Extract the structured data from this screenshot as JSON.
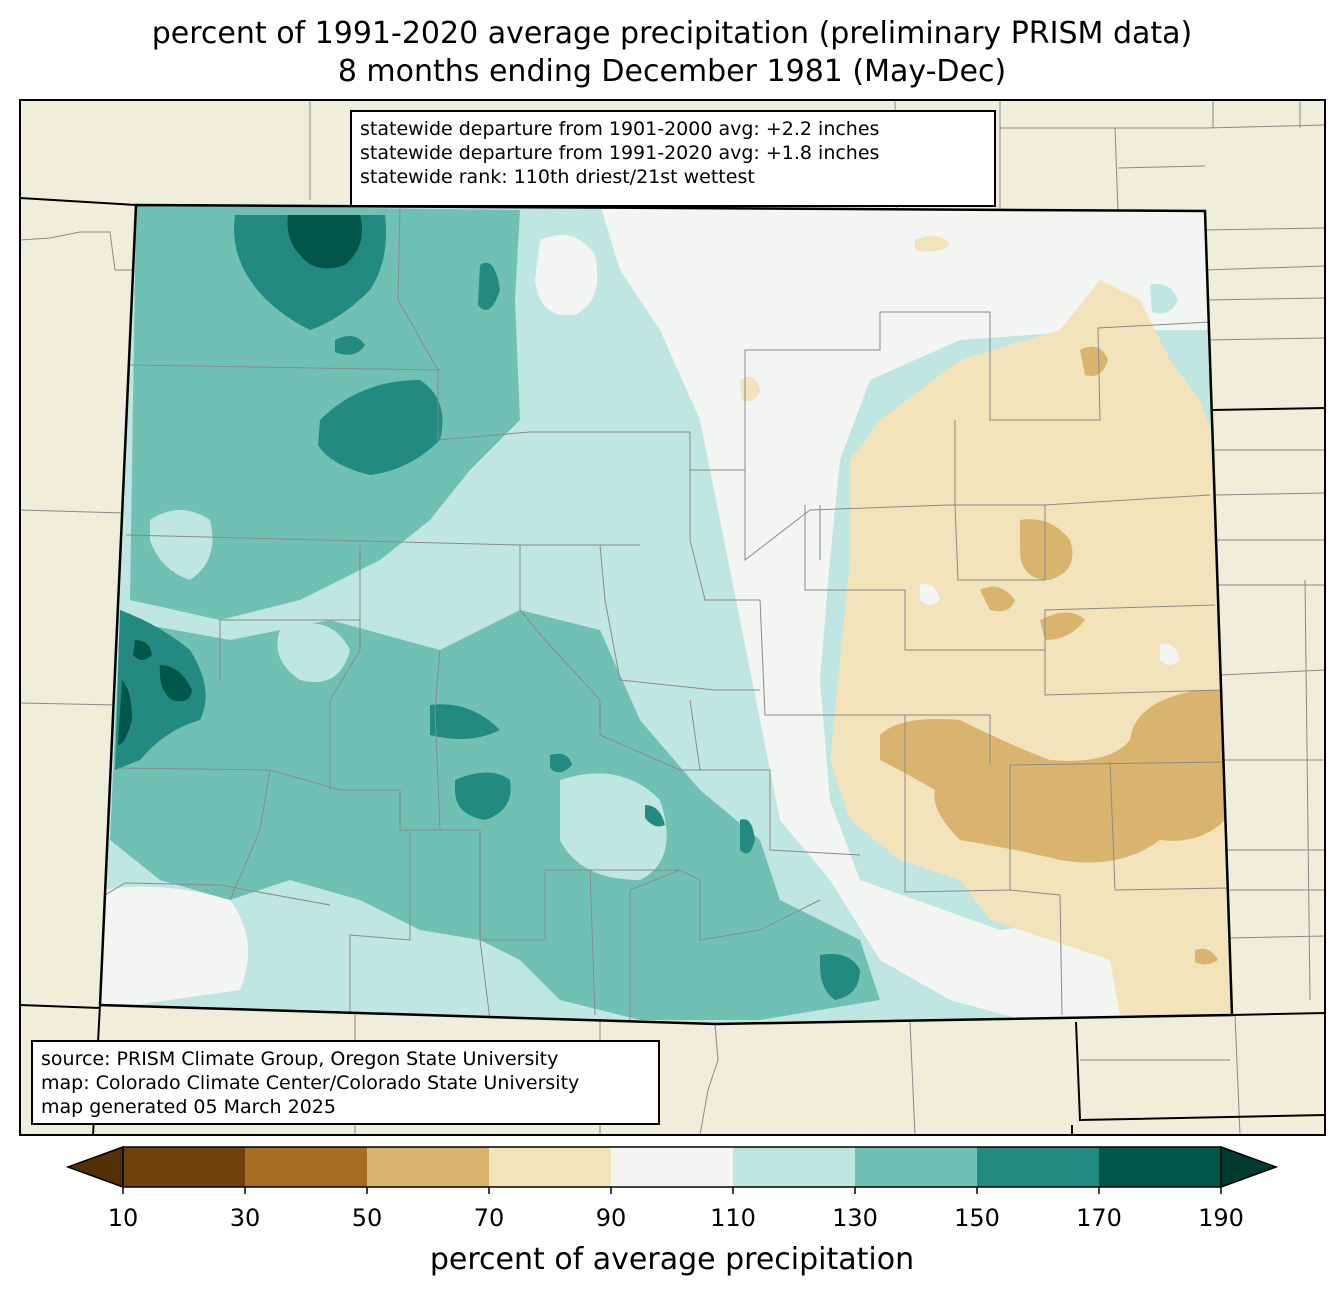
{
  "title": {
    "line1": "percent of 1991-2020 average precipitation (preliminary PRISM data)",
    "line2": "8 months ending December 1981 (May-Dec)"
  },
  "stats": {
    "line1": "statewide departure from 1901-2000 avg: +2.2 inches",
    "line2": "statewide departure from 1991-2020 avg: +1.8 inches",
    "line3": "statewide rank: 110th driest/21st wettest"
  },
  "source": {
    "line1": "source: PRISM Climate Group, Oregon State University",
    "line2": "map: Colorado Climate Center/Colorado State University",
    "line3": "map generated 05 March 2025"
  },
  "colorbar": {
    "label": "percent of average precipitation",
    "ticks": [
      "10",
      "30",
      "50",
      "70",
      "90",
      "110",
      "130",
      "150",
      "170",
      "190"
    ],
    "under_color": "#543005",
    "over_color": "#003c30",
    "bins": [
      {
        "range": "10-30",
        "color": "#70410a"
      },
      {
        "range": "30-50",
        "color": "#a86c22"
      },
      {
        "range": "50-70",
        "color": "#d9b46e"
      },
      {
        "range": "70-90",
        "color": "#f2e3bb"
      },
      {
        "range": "90-110",
        "color": "#f3f5f3"
      },
      {
        "range": "110-130",
        "color": "#bfe6e1"
      },
      {
        "range": "130-150",
        "color": "#70c1b4"
      },
      {
        "range": "150-170",
        "color": "#228a80"
      },
      {
        "range": "170-190",
        "color": "#01564a"
      }
    ]
  },
  "colors": {
    "background_land": "#efeedb",
    "county_lines": "#8a8a8a",
    "state_lines": "#000000"
  }
}
